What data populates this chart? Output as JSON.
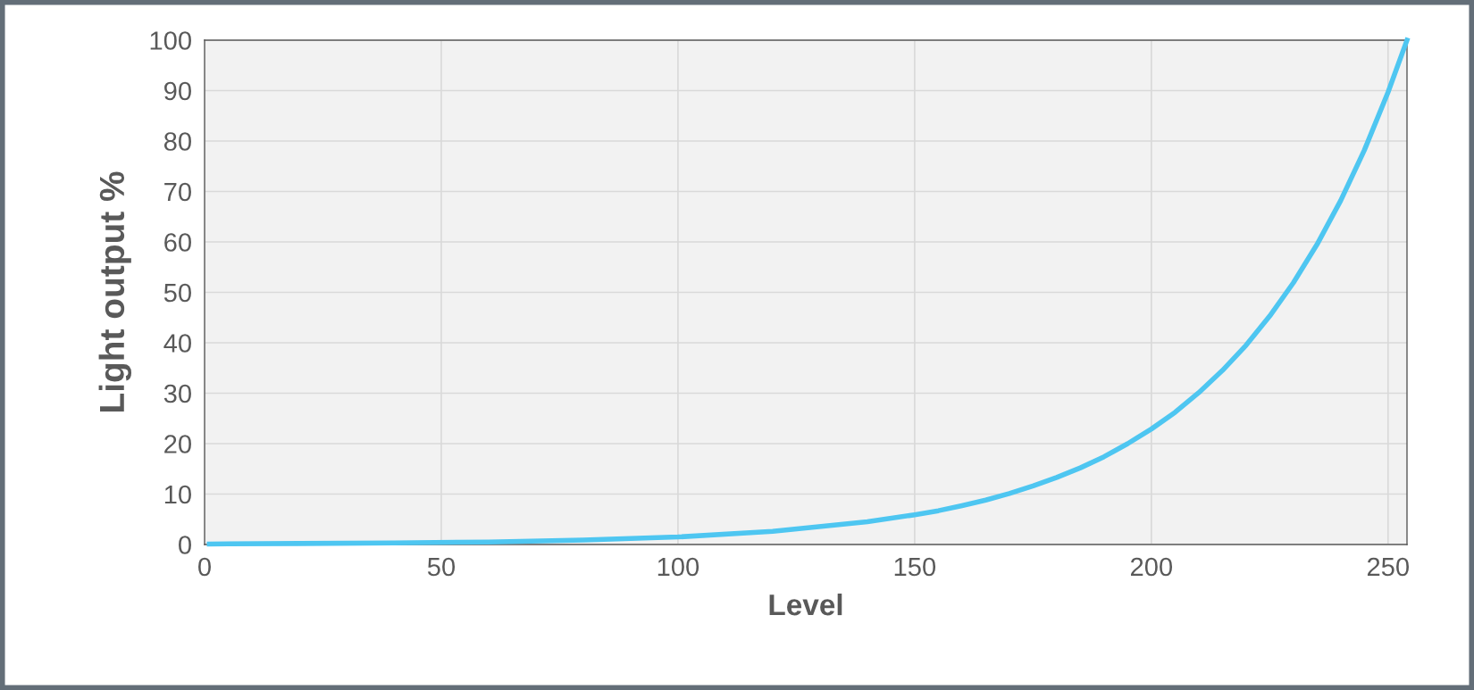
{
  "chart_data": {
    "type": "line",
    "xlabel": "Level",
    "ylabel": "Light output %",
    "x": [
      1,
      20,
      40,
      60,
      80,
      100,
      120,
      140,
      150,
      155,
      160,
      165,
      170,
      175,
      180,
      185,
      190,
      195,
      200,
      205,
      210,
      215,
      220,
      225,
      230,
      235,
      240,
      245,
      250,
      254
    ],
    "series": [
      {
        "color": "#4ec6f1",
        "values": [
          0.1,
          0.2,
          0.3,
          0.5,
          0.9,
          1.5,
          2.6,
          4.5,
          5.9,
          6.7,
          7.7,
          8.8,
          10.1,
          11.6,
          13.3,
          15.2,
          17.4,
          20.0,
          22.9,
          26.2,
          30.1,
          34.5,
          39.5,
          45.3,
          51.9,
          59.5,
          68.2,
          78.2,
          89.7,
          100
        ]
      }
    ],
    "xlim": [
      0,
      254
    ],
    "ylim": [
      0,
      100
    ],
    "xticks": [
      0,
      50,
      100,
      150,
      200,
      250
    ],
    "yticks": [
      0,
      10,
      20,
      30,
      40,
      50,
      60,
      70,
      80,
      90,
      100
    ],
    "grid": true,
    "legend": false,
    "marker": "none",
    "line_style": "solid"
  }
}
